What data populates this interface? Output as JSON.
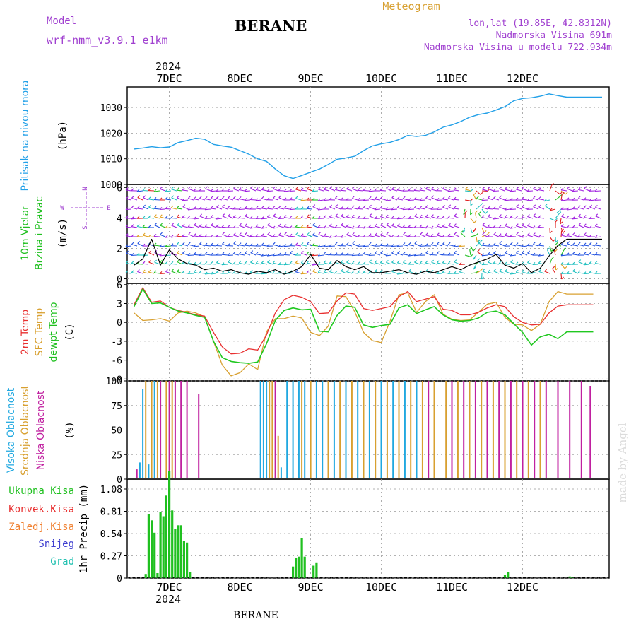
{
  "header": {
    "model_label": "Model",
    "model_name": "wrf-nmm_v3.9.1 e1km",
    "station": "BERANE",
    "meteogram_label": "Meteogram",
    "lonlat": "lon,lat (19.85E, 42.8312N)",
    "elevation": "Nadmorska Visina 691m",
    "model_elevation": "Nadmorska Visina u modelu 722.934m",
    "year_top": "2024",
    "year_bottom": "2024",
    "footer_station": "BERANE",
    "watermark": "made by Angel"
  },
  "days": [
    "7DEC",
    "8DEC",
    "9DEC",
    "10DEC",
    "11DEC",
    "12DEC"
  ],
  "panels": {
    "pressure": {
      "label": "Pritisak na nivou mora",
      "unit": "(hPa)"
    },
    "wind": {
      "label1": "10m Vjetar",
      "label2": "Brzina i Pravac",
      "unit": "(m/s)",
      "compass_n": "N",
      "compass_w": "W",
      "compass_e": "E",
      "compass_s": "S"
    },
    "temp": {
      "label_t2": "2m Temp",
      "label_sfc": "SFC Temp",
      "label_dew": "dewpt Temp",
      "unit": "(C)"
    },
    "cloud": {
      "label_high": "Visoka Oblacnost",
      "label_mid": "Srednja Oblacnost",
      "label_low": "Niska Oblacnost",
      "unit": "(%)"
    },
    "precip": {
      "legend_total": "Ukupna Kisa",
      "legend_conv": "Konvek.Kisa",
      "legend_frozen": "Zaledj.Kisa",
      "legend_snow": "Snijeg",
      "legend_hail": "Grad",
      "unit": "1hr Precip (mm)"
    }
  },
  "colors": {
    "pressure": "#22a0e8",
    "t2": "#e83030",
    "sfc": "#d8a030",
    "dew": "#20c820",
    "cloud_high": "#20a8e0",
    "cloud_mid": "#d8a030",
    "cloud_low": "#c020a0",
    "precip_total": "#20c020",
    "label_purple": "#a040d0",
    "label_gold": "#d8a030"
  },
  "chart_data": [
    {
      "type": "line",
      "name": "pressure",
      "x_unit": "hours since 7DEC 00:00",
      "ylim": [
        1000,
        1038
      ],
      "yticks": [
        "1000",
        "1010",
        "1020",
        "1030"
      ],
      "series": [
        {
          "x": [
            -12,
            -9,
            -6,
            -3,
            0,
            3,
            6,
            9,
            12,
            15,
            18,
            21,
            24,
            27,
            30,
            33,
            36,
            39,
            42,
            45,
            48,
            51,
            54,
            57,
            60,
            63,
            66,
            69,
            72,
            75,
            78,
            81,
            84,
            87,
            90,
            93,
            96,
            99,
            102,
            105,
            108,
            111,
            114,
            117,
            120,
            123,
            126,
            129,
            132,
            135,
            138,
            141,
            144,
            147
          ],
          "y": [
            1013.8,
            1014.2,
            1014.7,
            1014.3,
            1014.6,
            1016.3,
            1017.1,
            1018.0,
            1017.6,
            1015.6,
            1015.0,
            1014.5,
            1013.2,
            1011.8,
            1010.0,
            1009.0,
            1006.0,
            1003.4,
            1002.3,
            1003.5,
            1004.8,
            1006.0,
            1007.8,
            1009.8,
            1010.3,
            1011.0,
            1013.2,
            1015.0,
            1015.8,
            1016.4,
            1017.5,
            1019.1,
            1018.7,
            1019.1,
            1020.5,
            1022.3,
            1023.2,
            1024.5,
            1026.2,
            1027.2,
            1027.8,
            1029.0,
            1030.3,
            1032.6,
            1033.5,
            1033.8,
            1034.4,
            1035.3,
            1034.6,
            1034.0,
            1034.0,
            1034.0,
            1034.0,
            1034.0
          ]
        }
      ]
    },
    {
      "type": "line",
      "name": "wind",
      "ylim": [
        -0.3,
        6.2
      ],
      "yticks": [
        "0",
        "2",
        "4",
        "6"
      ],
      "series": [
        {
          "name": "speed",
          "x": [
            -12,
            -9,
            -6,
            -3,
            0,
            3,
            6,
            9,
            12,
            15,
            18,
            21,
            24,
            27,
            30,
            33,
            36,
            39,
            42,
            45,
            48,
            51,
            54,
            57,
            60,
            63,
            66,
            69,
            72,
            75,
            78,
            81,
            84,
            87,
            90,
            93,
            96,
            99,
            102,
            105,
            108,
            111,
            114,
            117,
            120,
            123,
            126,
            129,
            132,
            135,
            138,
            141,
            144,
            147
          ],
          "y": [
            0.9,
            1.3,
            2.6,
            0.9,
            1.9,
            1.3,
            1.0,
            0.9,
            0.6,
            0.7,
            0.5,
            0.6,
            0.4,
            0.3,
            0.5,
            0.4,
            0.6,
            0.3,
            0.5,
            0.8,
            1.6,
            0.7,
            0.6,
            1.2,
            0.8,
            0.6,
            0.8,
            0.4,
            0.4,
            0.5,
            0.6,
            0.4,
            0.3,
            0.5,
            0.4,
            0.6,
            0.8,
            0.6,
            0.9,
            1.1,
            1.3,
            1.6,
            0.9,
            0.7,
            1.0,
            0.4,
            0.7,
            1.5,
            2.2,
            2.6,
            2.6,
            2.6,
            2.6,
            2.6
          ]
        }
      ]
    },
    {
      "type": "line",
      "name": "temperature",
      "ylim": [
        -9.3,
        6.2
      ],
      "yticks": [
        "-9",
        "-6",
        "-3",
        "0",
        "3",
        "6"
      ],
      "series": [
        {
          "name": "2m Temp",
          "x": [
            -12,
            -9,
            -6,
            -3,
            0,
            3,
            6,
            9,
            12,
            15,
            18,
            21,
            24,
            27,
            30,
            33,
            36,
            39,
            42,
            45,
            48,
            51,
            54,
            57,
            60,
            63,
            66,
            69,
            72,
            75,
            78,
            81,
            84,
            87,
            90,
            93,
            96,
            99,
            102,
            105,
            108,
            111,
            114,
            117,
            120,
            123,
            126,
            129,
            132,
            135,
            138,
            141,
            144
          ],
          "y": [
            2.8,
            5.5,
            3.2,
            3.4,
            2.4,
            1.9,
            1.6,
            1.2,
            1.0,
            -1.6,
            -3.9,
            -5.0,
            -4.9,
            -4.2,
            -4.4,
            -2.0,
            1.5,
            3.6,
            4.3,
            4.0,
            3.3,
            1.4,
            1.5,
            3.4,
            4.7,
            4.5,
            2.2,
            1.9,
            2.2,
            2.5,
            4.1,
            4.9,
            3.3,
            3.7,
            4.1,
            2.1,
            1.9,
            1.2,
            1.2,
            1.6,
            2.3,
            2.8,
            2.5,
            0.9,
            0.0,
            -0.4,
            -0.3,
            1.5,
            2.6,
            2.8,
            2.8,
            2.8,
            2.8
          ]
        },
        {
          "name": "SFC Temp",
          "x": [
            -12,
            -9,
            -6,
            -3,
            0,
            3,
            6,
            9,
            12,
            15,
            18,
            21,
            24,
            27,
            30,
            33,
            36,
            39,
            42,
            45,
            48,
            51,
            54,
            57,
            60,
            63,
            66,
            69,
            72,
            75,
            78,
            81,
            84,
            87,
            90,
            93,
            96,
            99,
            102,
            105,
            108,
            111,
            114,
            117,
            120,
            123,
            126,
            129,
            132,
            135,
            138,
            141,
            144
          ],
          "y": [
            1.5,
            0.3,
            0.4,
            0.6,
            0.2,
            1.5,
            1.8,
            1.5,
            0.9,
            -3.0,
            -6.8,
            -8.5,
            -8.0,
            -6.6,
            -7.5,
            -1.5,
            0.6,
            0.6,
            1.0,
            0.7,
            -1.6,
            -2.1,
            -0.6,
            4.2,
            4.1,
            1.7,
            -1.6,
            -2.9,
            -3.2,
            0.2,
            4.4,
            4.7,
            1.6,
            3.3,
            4.4,
            1.3,
            0.5,
            0.3,
            0.4,
            1.6,
            2.9,
            3.2,
            0.8,
            -0.3,
            -0.4,
            -1.3,
            -0.3,
            3.3,
            4.9,
            4.5,
            4.5,
            4.5,
            4.5
          ]
        },
        {
          "name": "dewpt Temp",
          "x": [
            -12,
            -9,
            -6,
            -3,
            0,
            3,
            6,
            9,
            12,
            15,
            18,
            21,
            24,
            27,
            30,
            33,
            36,
            39,
            42,
            45,
            48,
            51,
            54,
            57,
            60,
            63,
            66,
            69,
            72,
            75,
            78,
            81,
            84,
            87,
            90,
            93,
            96,
            99,
            102,
            105,
            108,
            111,
            114,
            117,
            120,
            123,
            126,
            129,
            132,
            135,
            138,
            141,
            144
          ],
          "y": [
            2.5,
            5.3,
            3.0,
            3.1,
            2.4,
            1.8,
            1.5,
            1.1,
            0.8,
            -3.0,
            -5.6,
            -6.2,
            -6.4,
            -6.5,
            -6.3,
            -3.4,
            0.3,
            1.9,
            2.3,
            2.0,
            2.1,
            -1.4,
            -1.5,
            1.1,
            2.6,
            2.4,
            -0.4,
            -0.8,
            -0.5,
            -0.3,
            2.3,
            2.8,
            1.4,
            2.0,
            2.5,
            1.2,
            0.4,
            0.2,
            0.3,
            0.7,
            1.6,
            1.8,
            1.2,
            -0.2,
            -1.6,
            -3.6,
            -2.3,
            -1.9,
            -2.6,
            -1.5,
            -1.5,
            -1.5,
            -1.5
          ]
        }
      ]
    },
    {
      "type": "bar",
      "name": "cloud",
      "ylim": [
        0,
        100
      ],
      "yticks": [
        "0",
        "25",
        "50",
        "75",
        "100"
      ],
      "series": [
        {
          "name": "Visoka Oblacnost",
          "x": [
            -10,
            -9,
            -7,
            -5,
            31,
            32,
            33,
            38,
            40,
            42,
            44,
            46,
            50,
            52,
            56,
            60,
            64,
            68,
            72,
            76,
            80,
            84
          ],
          "y": [
            17,
            92,
            15,
            100,
            100,
            100,
            100,
            12,
            100,
            100,
            100,
            100,
            100,
            100,
            100,
            100,
            100,
            100,
            100,
            100,
            100,
            100
          ]
        },
        {
          "name": "Srednja Oblacnost",
          "x": [
            -8,
            -6,
            -4,
            -1,
            1,
            34,
            35,
            37,
            45,
            48,
            54,
            58,
            62,
            66,
            70,
            74,
            78,
            82,
            86,
            90,
            94,
            98,
            102,
            106,
            110,
            114,
            118,
            122,
            126
          ],
          "y": [
            100,
            100,
            100,
            100,
            100,
            100,
            100,
            44,
            100,
            100,
            100,
            100,
            100,
            100,
            100,
            100,
            100,
            100,
            100,
            100,
            100,
            100,
            100,
            100,
            100,
            100,
            100,
            100,
            100
          ]
        },
        {
          "name": "Niska Oblacnost",
          "x": [
            -11,
            -3,
            0,
            2,
            4,
            6,
            10,
            36,
            88,
            96,
            100,
            104,
            108,
            112,
            116,
            120,
            124,
            128,
            132,
            136,
            140,
            143
          ],
          "y": [
            10,
            100,
            100,
            100,
            100,
            100,
            87,
            100,
            100,
            100,
            100,
            100,
            100,
            100,
            100,
            100,
            100,
            100,
            100,
            100,
            100,
            95
          ]
        }
      ]
    },
    {
      "type": "bar",
      "name": "precip",
      "ylim": [
        0,
        1.2
      ],
      "yticks": [
        "0",
        "0.27",
        "0.54",
        "0.81",
        "1.08"
      ],
      "series": [
        {
          "name": "Ukupna Kisa",
          "x": [
            -8,
            -7,
            -6,
            -5,
            -4,
            -3,
            -2,
            -1,
            0,
            1,
            2,
            3,
            4,
            5,
            6,
            7,
            42,
            43,
            44,
            45,
            46,
            49,
            50,
            114,
            115,
            136,
            137
          ],
          "y": [
            0.05,
            0.78,
            0.7,
            0.55,
            0.06,
            0.8,
            0.75,
            1.0,
            1.3,
            0.82,
            0.6,
            0.64,
            0.64,
            0.45,
            0.43,
            0.07,
            0.14,
            0.24,
            0.26,
            0.48,
            0.26,
            0.15,
            0.19,
            0.04,
            0.07,
            0.02,
            0.01
          ]
        }
      ]
    }
  ]
}
